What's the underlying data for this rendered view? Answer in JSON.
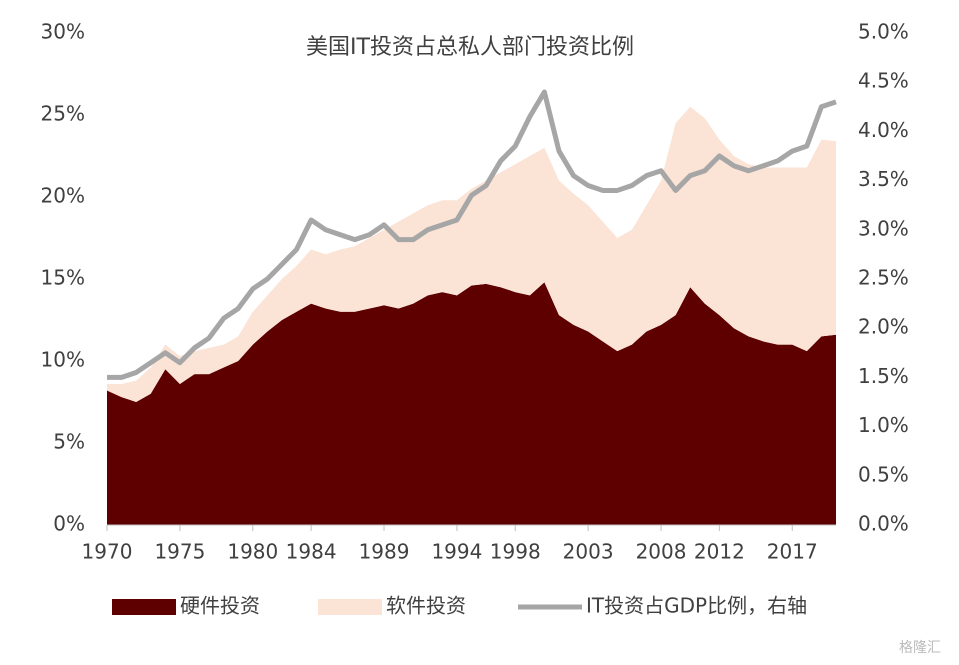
{
  "chart_data": {
    "type": "stacked_area_line",
    "title": "美国IT投资占总私人部门投资比例",
    "watermark": "格隆汇",
    "x": [
      1970,
      1971,
      1972,
      1973,
      1974,
      1975,
      1976,
      1977,
      1978,
      1979,
      1980,
      1981,
      1982,
      1983,
      1984,
      1985,
      1986,
      1987,
      1988,
      1989,
      1990,
      1991,
      1992,
      1993,
      1994,
      1995,
      1996,
      1997,
      1998,
      1999,
      2000,
      2001,
      2002,
      2003,
      2004,
      2005,
      2006,
      2007,
      2008,
      2009,
      2010,
      2011,
      2012,
      2013,
      2014,
      2015,
      2016,
      2017,
      2018,
      2019,
      2020
    ],
    "xlim": [
      1970,
      2020
    ],
    "xticks": [
      1970,
      1975,
      1980,
      1984,
      1989,
      1994,
      1998,
      2003,
      2008,
      2012,
      2017
    ],
    "ylim": [
      0,
      30
    ],
    "yticks": [
      {
        "value": 0,
        "label": "0%"
      },
      {
        "value": 5,
        "label": "5%"
      },
      {
        "value": 10,
        "label": "10%"
      },
      {
        "value": 15,
        "label": "15%"
      },
      {
        "value": 20,
        "label": "20%"
      },
      {
        "value": 25,
        "label": "25%"
      },
      {
        "value": 30,
        "label": "30%"
      }
    ],
    "y2lim": [
      0,
      5
    ],
    "y2ticks": [
      {
        "value": 0,
        "label": "0.0%"
      },
      {
        "value": 0.5,
        "label": "0.5%"
      },
      {
        "value": 1,
        "label": "1.0%"
      },
      {
        "value": 1.5,
        "label": "1.5%"
      },
      {
        "value": 2,
        "label": "2.0%"
      },
      {
        "value": 2.5,
        "label": "2.5%"
      },
      {
        "value": 3,
        "label": "3.0%"
      },
      {
        "value": 3.5,
        "label": "3.5%"
      },
      {
        "value": 4,
        "label": "4.0%"
      },
      {
        "value": 4.5,
        "label": "4.5%"
      },
      {
        "value": 5,
        "label": "5.0%"
      }
    ],
    "legend": "bottom",
    "series": [
      {
        "name": "硬件投资",
        "color": "#5e0000",
        "kind": "area",
        "values": [
          8.2,
          7.8,
          7.5,
          8.0,
          9.5,
          8.6,
          9.2,
          9.2,
          9.6,
          10.0,
          11.0,
          11.8,
          12.5,
          13.0,
          13.5,
          13.2,
          13.0,
          13.0,
          13.2,
          13.4,
          13.2,
          13.5,
          14.0,
          14.2,
          14.0,
          14.6,
          14.7,
          14.5,
          14.2,
          14.0,
          14.8,
          12.8,
          12.2,
          11.8,
          11.2,
          10.6,
          11.0,
          11.8,
          12.2,
          12.8,
          14.5,
          13.5,
          12.8,
          12.0,
          11.5,
          11.2,
          11.0,
          11.0,
          10.6,
          11.5,
          11.6
        ]
      },
      {
        "name": "软件投资",
        "color": "#fbe3d6",
        "kind": "area",
        "values": [
          0.4,
          0.8,
          1.3,
          1.6,
          1.5,
          1.7,
          1.4,
          1.6,
          1.4,
          1.5,
          2.0,
          2.2,
          2.5,
          2.8,
          3.3,
          3.3,
          3.8,
          4.0,
          4.3,
          4.6,
          5.3,
          5.5,
          5.5,
          5.6,
          5.8,
          5.9,
          6.3,
          7.0,
          7.8,
          8.5,
          8.2,
          8.2,
          8.0,
          7.7,
          7.3,
          6.9,
          7.0,
          7.7,
          8.8,
          11.7,
          11.0,
          11.3,
          10.7,
          10.5,
          10.5,
          10.6,
          10.8,
          10.8,
          11.2,
          12.0,
          11.8
        ]
      },
      {
        "name": "IT投资占GDP比例，右轴",
        "color": "#a6a6a6",
        "kind": "line",
        "axis": "y2",
        "values": [
          1.5,
          1.5,
          1.55,
          1.65,
          1.75,
          1.65,
          1.8,
          1.9,
          2.1,
          2.2,
          2.4,
          2.5,
          2.65,
          2.8,
          3.1,
          3.0,
          2.95,
          2.9,
          2.95,
          3.05,
          2.9,
          2.9,
          3.0,
          3.05,
          3.1,
          3.35,
          3.45,
          3.7,
          3.85,
          4.15,
          4.4,
          3.8,
          3.55,
          3.45,
          3.4,
          3.4,
          3.45,
          3.55,
          3.6,
          3.4,
          3.55,
          3.6,
          3.75,
          3.65,
          3.6,
          3.65,
          3.7,
          3.8,
          3.85,
          4.25,
          4.3
        ]
      }
    ]
  }
}
